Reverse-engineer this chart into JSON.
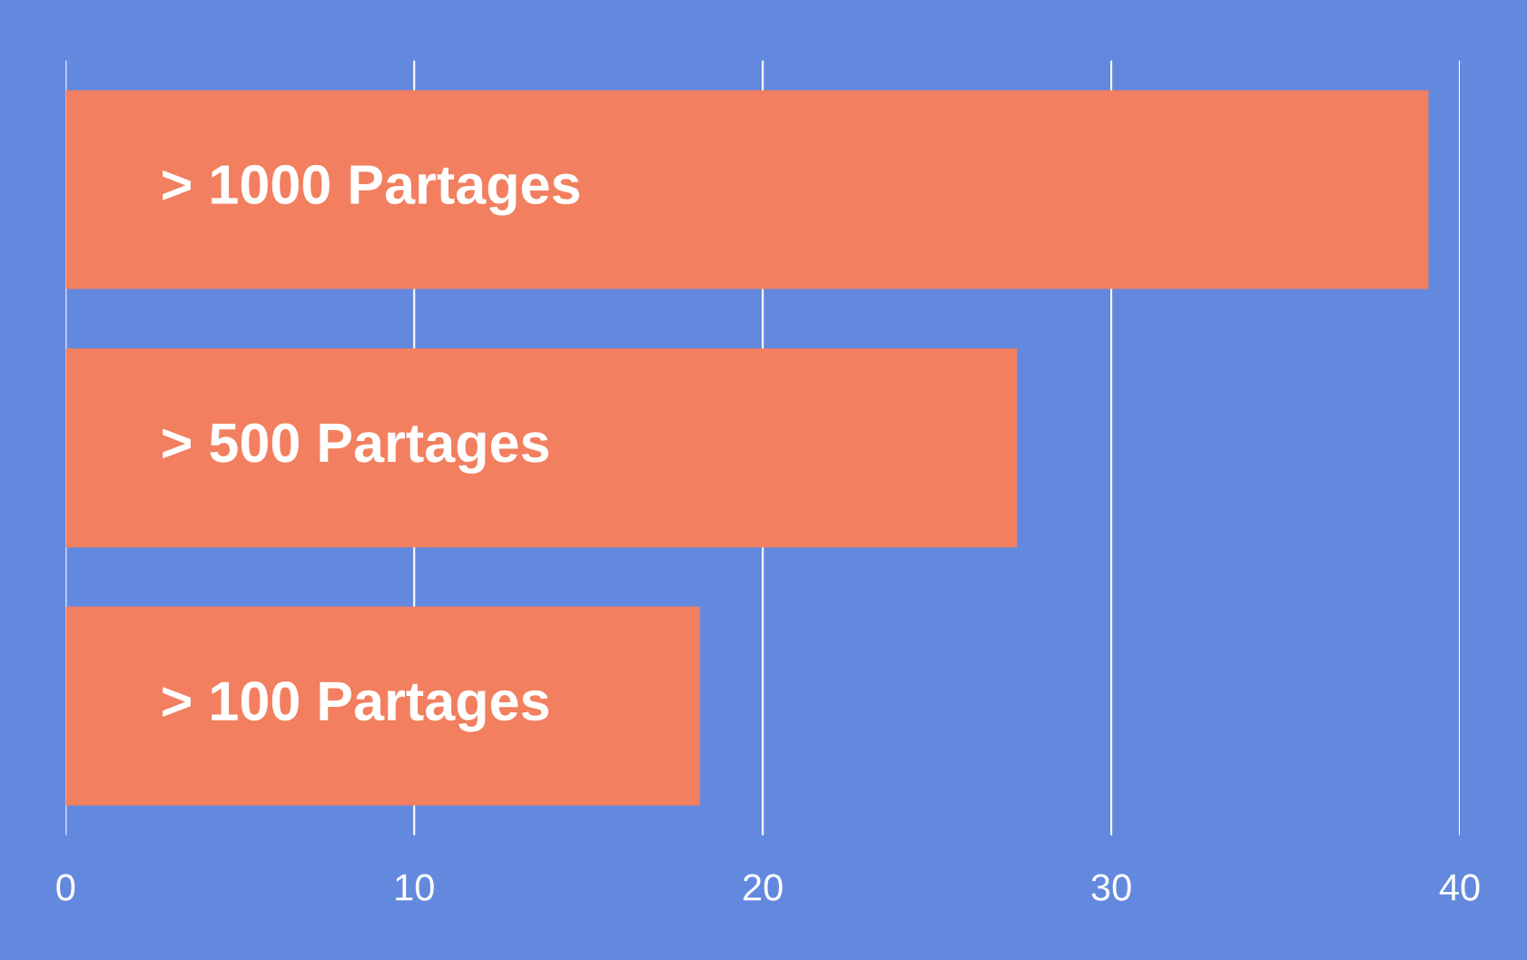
{
  "chart_data": {
    "type": "bar",
    "orientation": "horizontal",
    "categories": [
      "> 1000 Partages",
      "> 500 Partages",
      "> 100 Partages"
    ],
    "values": [
      39.1,
      27.3,
      18.2
    ],
    "color": "#f27f5f",
    "xlim": [
      0,
      40
    ],
    "xticks": [
      0,
      10,
      20,
      30,
      40
    ],
    "grid": "x",
    "tick_labels": "x"
  }
}
